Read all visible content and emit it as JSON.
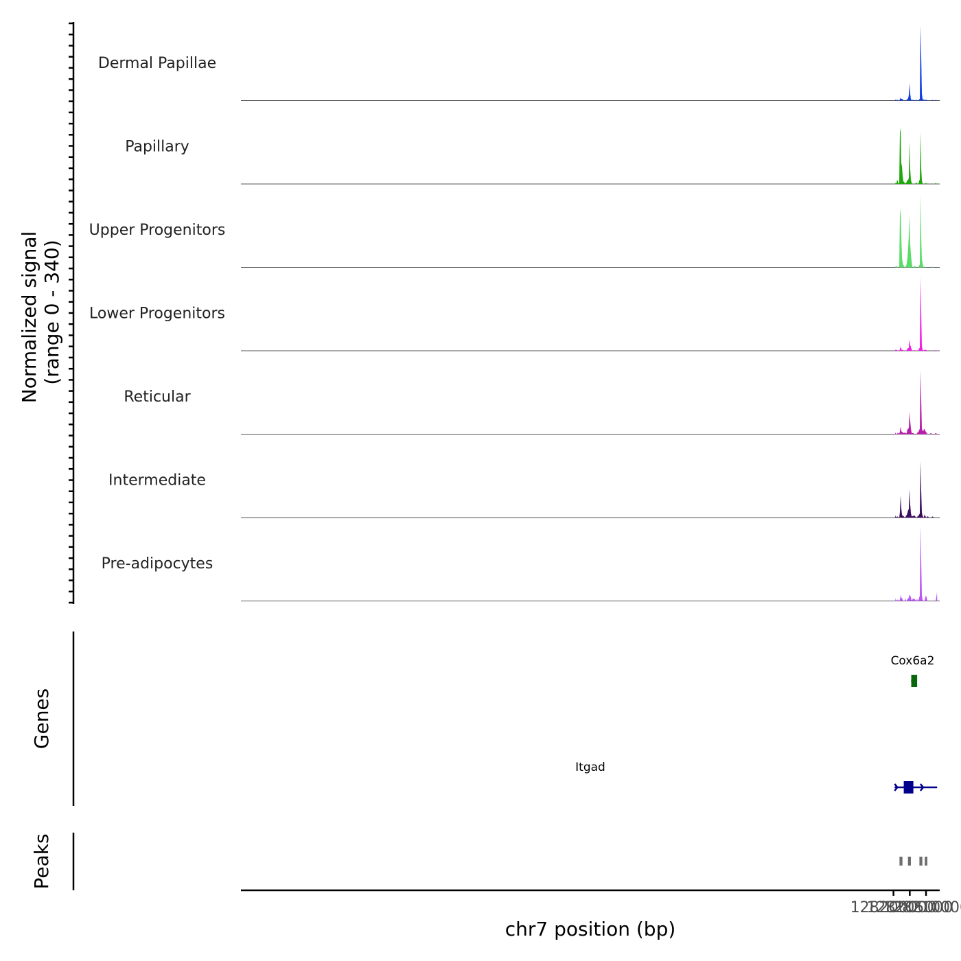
{
  "chart_data": {
    "type": "area",
    "genome": "chr7",
    "x_range_bp": [
      127999600,
      128214200
    ],
    "xaxis": {
      "label": "chr7 position (bp)",
      "ticks": [
        128200000,
        128205000,
        128210000
      ],
      "tick_labels": [
        "128200000",
        "128205000",
        "128210000"
      ]
    },
    "coverage": {
      "ylabel_line1": "Normalized signal",
      "ylabel_line2": "(range 0 - 340)",
      "y_range": [
        0,
        340
      ],
      "tracks": [
        {
          "name": "Dermal Papillae",
          "color": "#1240e0",
          "peaks": [
            [
              128200600,
              5,
              150
            ],
            [
              128201200,
              4,
              150
            ],
            [
              128202200,
              14,
              160
            ],
            [
              128202700,
              8,
              150
            ],
            [
              128204200,
              6,
              160
            ],
            [
              128204600,
              10,
              160
            ],
            [
              128204950,
              80,
              130
            ],
            [
              128205300,
              6,
              150
            ],
            [
              128206000,
              4,
              200
            ],
            [
              128207000,
              4,
              200
            ],
            [
              128208000,
              6,
              150
            ],
            [
              128208350,
              280,
              80
            ],
            [
              128208450,
              180,
              120
            ],
            [
              128208700,
              20,
              150
            ],
            [
              128209300,
              6,
              150
            ],
            [
              128210000,
              5,
              150
            ],
            [
              128212000,
              3,
              200
            ],
            [
              128213000,
              3,
              150
            ]
          ]
        },
        {
          "name": "Papillary",
          "color": "#1fa80c",
          "peaks": [
            [
              128200500,
              6,
              150
            ],
            [
              128201200,
              20,
              150
            ],
            [
              128202050,
              250,
              100
            ],
            [
              128202200,
              150,
              120
            ],
            [
              128202500,
              65,
              150
            ],
            [
              128202750,
              30,
              200
            ],
            [
              128203300,
              8,
              150
            ],
            [
              128204000,
              6,
              200
            ],
            [
              128204400,
              18,
              200
            ],
            [
              128204950,
              190,
              110
            ],
            [
              128205200,
              25,
              200
            ],
            [
              128207000,
              6,
              200
            ],
            [
              128208000,
              18,
              150
            ],
            [
              128208350,
              250,
              90
            ],
            [
              128208600,
              25,
              150
            ],
            [
              128210000,
              4,
              200
            ],
            [
              128213000,
              4,
              200
            ]
          ]
        },
        {
          "name": "Upper Progenitors",
          "color": "#5adc6a",
          "peaks": [
            [
              128200500,
              4,
              200
            ],
            [
              128201000,
              5,
              150
            ],
            [
              128202050,
              300,
              80
            ],
            [
              128202250,
              210,
              130
            ],
            [
              128202500,
              40,
              200
            ],
            [
              128203000,
              10,
              200
            ],
            [
              128204000,
              8,
              200
            ],
            [
              128204400,
              50,
              180
            ],
            [
              128204650,
              135,
              90
            ],
            [
              128204950,
              200,
              100
            ],
            [
              128205100,
              60,
              200
            ],
            [
              128205400,
              30,
              200
            ],
            [
              128206500,
              6,
              200
            ],
            [
              128208000,
              10,
              200
            ],
            [
              128208350,
              340,
              80
            ],
            [
              128208500,
              90,
              120
            ],
            [
              128208800,
              25,
              150
            ],
            [
              128209500,
              4,
              200
            ],
            [
              128212000,
              3,
              200
            ]
          ]
        },
        {
          "name": "Lower Progenitors",
          "color": "#f21ee6",
          "peaks": [
            [
              128200600,
              4,
              200
            ],
            [
              128201000,
              3,
              200
            ],
            [
              128202200,
              20,
              150
            ],
            [
              128202800,
              4,
              200
            ],
            [
              128204400,
              12,
              200
            ],
            [
              128204950,
              50,
              130
            ],
            [
              128205300,
              15,
              200
            ],
            [
              128206500,
              3,
              200
            ],
            [
              128208000,
              12,
              200
            ],
            [
              128208350,
              300,
              80
            ],
            [
              128208450,
              150,
              110
            ],
            [
              128208700,
              15,
              150
            ],
            [
              128209500,
              4,
              200
            ],
            [
              128210000,
              4,
              200
            ],
            [
              128213000,
              3,
              200
            ]
          ]
        },
        {
          "name": "Reticular",
          "color": "#b81eaa",
          "peaks": [
            [
              128200500,
              8,
              150
            ],
            [
              128201400,
              8,
              150
            ],
            [
              128202200,
              35,
              150
            ],
            [
              128202800,
              10,
              200
            ],
            [
              128203500,
              8,
              200
            ],
            [
              128204400,
              25,
              200
            ],
            [
              128204950,
              90,
              130
            ],
            [
              128205200,
              30,
              200
            ],
            [
              128206000,
              6,
              200
            ],
            [
              128207500,
              8,
              200
            ],
            [
              128208000,
              20,
              200
            ],
            [
              128208350,
              240,
              90
            ],
            [
              128208450,
              120,
              120
            ],
            [
              128208800,
              20,
              150
            ],
            [
              128209300,
              18,
              150
            ],
            [
              128209600,
              20,
              150
            ],
            [
              128210000,
              8,
              200
            ],
            [
              128211500,
              5,
              200
            ],
            [
              128213000,
              5,
              200
            ]
          ]
        },
        {
          "name": "Intermediate",
          "color": "#3b0d5e",
          "peaks": [
            [
              128200500,
              10,
              150
            ],
            [
              128201200,
              6,
              150
            ],
            [
              128202200,
              100,
              130
            ],
            [
              128202500,
              15,
              150
            ],
            [
              128203000,
              8,
              200
            ],
            [
              128204000,
              10,
              200
            ],
            [
              128204500,
              30,
              200
            ],
            [
              128204950,
              120,
              120
            ],
            [
              128205200,
              25,
              200
            ],
            [
              128206000,
              8,
              200
            ],
            [
              128206500,
              8,
              200
            ],
            [
              128207500,
              6,
              200
            ],
            [
              128208000,
              15,
              200
            ],
            [
              128208350,
              250,
              90
            ],
            [
              128208500,
              70,
              120
            ],
            [
              128208800,
              12,
              150
            ],
            [
              128209600,
              15,
              150
            ],
            [
              128210500,
              6,
              200
            ],
            [
              128212000,
              5,
              200
            ]
          ]
        },
        {
          "name": "Pre-adipocytes",
          "color": "#bb58f4",
          "peaks": [
            [
              128200500,
              16,
              60
            ],
            [
              128201000,
              12,
              60
            ],
            [
              128201400,
              14,
              60
            ],
            [
              128202200,
              28,
              130
            ],
            [
              128202600,
              14,
              130
            ],
            [
              128203700,
              12,
              80
            ],
            [
              128204400,
              14,
              100
            ],
            [
              128204950,
              28,
              200
            ],
            [
              128205300,
              12,
              150
            ],
            [
              128206000,
              14,
              150
            ],
            [
              128206500,
              10,
              150
            ],
            [
              128207200,
              10,
              100
            ],
            [
              128208000,
              20,
              150
            ],
            [
              128208350,
              300,
              90
            ],
            [
              128208450,
              130,
              120
            ],
            [
              128208700,
              18,
              150
            ],
            [
              128209900,
              26,
              130
            ],
            [
              128210200,
              12,
              100
            ],
            [
              128213300,
              45,
              110
            ]
          ]
        }
      ]
    },
    "genes": {
      "ylabel": "Genes",
      "items": [
        {
          "name": "Cox6a2",
          "strand": "-",
          "start": 128205400,
          "end": 128206350,
          "color": "#0a660a",
          "exons": [
            [
              128205450,
              128205800
            ],
            [
              128205950,
              128206050
            ],
            [
              128206200,
              128206350
            ]
          ]
        },
        {
          "name": "Itgad",
          "strand": "+",
          "start": 128200350,
          "end": 128213400,
          "color": "#00008b",
          "exons": [
            [
              128203150,
              128203200
            ],
            [
              128203350,
              128203450
            ],
            [
              128203550,
              128203600
            ],
            [
              128203850,
              128203950
            ],
            [
              128204050,
              128204100
            ],
            [
              128204250,
              128204300
            ],
            [
              128204600,
              128204700
            ],
            [
              128205050,
              128205500
            ]
          ]
        }
      ]
    },
    "peaks_track": {
      "ylabel": "Peaks",
      "color": "#6e6e6e",
      "regions": [
        [
          128201850,
          128202750
        ],
        [
          128204450,
          128205350
        ],
        [
          128207950,
          128208850
        ],
        [
          128209600,
          128210400
        ]
      ]
    }
  }
}
